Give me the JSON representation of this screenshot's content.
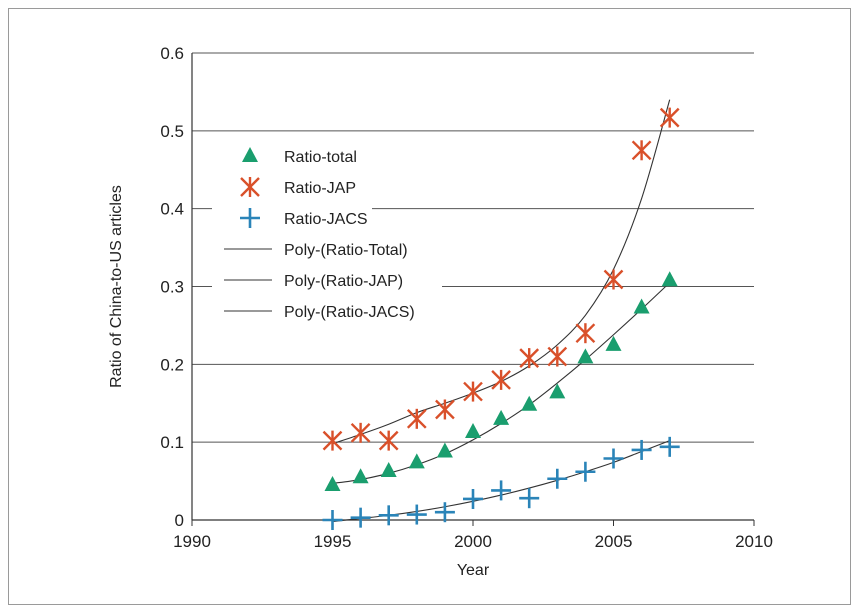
{
  "chart_data": {
    "type": "scatter",
    "title": "",
    "xlabel": "Year",
    "ylabel": "Ratio of China-to-US articles",
    "xlim": [
      1990,
      2010
    ],
    "ylim": [
      0,
      0.6
    ],
    "xticks": [
      1990,
      1995,
      2000,
      2005,
      2010
    ],
    "yticks": [
      0,
      0.1,
      0.2,
      0.3,
      0.4,
      0.5,
      0.6
    ],
    "grid": "horizontal",
    "legend_position": "top-left",
    "series": [
      {
        "name": "Ratio-total",
        "marker": "triangle",
        "color": "#1a9e6e",
        "x": [
          1995,
          1996,
          1997,
          1998,
          1999,
          2000,
          2001,
          2002,
          2003,
          2004,
          2005,
          2006,
          2007
        ],
        "y": [
          0.045,
          0.055,
          0.063,
          0.074,
          0.088,
          0.113,
          0.13,
          0.148,
          0.164,
          0.209,
          0.225,
          0.273,
          0.308
        ]
      },
      {
        "name": "Ratio-JAP",
        "marker": "asterisk",
        "color": "#d9502a",
        "x": [
          1995,
          1996,
          1997,
          1998,
          1999,
          2000,
          2001,
          2002,
          2003,
          2004,
          2005,
          2006,
          2007
        ],
        "y": [
          0.102,
          0.112,
          0.102,
          0.13,
          0.142,
          0.165,
          0.18,
          0.208,
          0.21,
          0.24,
          0.309,
          0.475,
          0.517
        ]
      },
      {
        "name": "Ratio-JACS",
        "marker": "plus",
        "color": "#2a84b8",
        "x": [
          1995,
          1996,
          1997,
          1998,
          1999,
          2000,
          2001,
          2002,
          2003,
          2004,
          2005,
          2006,
          2007
        ],
        "y": [
          0.0,
          0.003,
          0.006,
          0.007,
          0.01,
          0.027,
          0.038,
          0.028,
          0.053,
          0.062,
          0.079,
          0.09,
          0.094
        ]
      },
      {
        "name": "Poly-(Ratio-Total)",
        "type": "line",
        "color": "#333333",
        "x": [
          1995,
          1996,
          1997,
          1998,
          1999,
          2000,
          2001,
          2002,
          2003,
          2004,
          2005,
          2006,
          2007
        ],
        "y": [
          0.047,
          0.052,
          0.06,
          0.071,
          0.085,
          0.103,
          0.124,
          0.148,
          0.176,
          0.206,
          0.238,
          0.271,
          0.305
        ]
      },
      {
        "name": "Poly-(Ratio-JAP)",
        "type": "line",
        "color": "#333333",
        "x": [
          1995,
          1996,
          1997,
          1998,
          1999,
          2000,
          2001,
          2002,
          2003,
          2004,
          2005,
          2006,
          2007
        ],
        "y": [
          0.098,
          0.11,
          0.123,
          0.138,
          0.15,
          0.163,
          0.178,
          0.198,
          0.225,
          0.263,
          0.322,
          0.413,
          0.54
        ]
      },
      {
        "name": "Poly-(Ratio-JACS)",
        "type": "line",
        "color": "#333333",
        "x": [
          1995,
          1996,
          1997,
          1998,
          1999,
          2000,
          2001,
          2002,
          2003,
          2004,
          2005,
          2006,
          2007
        ],
        "y": [
          -0.002,
          0.002,
          0.006,
          0.011,
          0.017,
          0.024,
          0.032,
          0.041,
          0.051,
          0.062,
          0.074,
          0.088,
          0.102
        ]
      }
    ]
  }
}
